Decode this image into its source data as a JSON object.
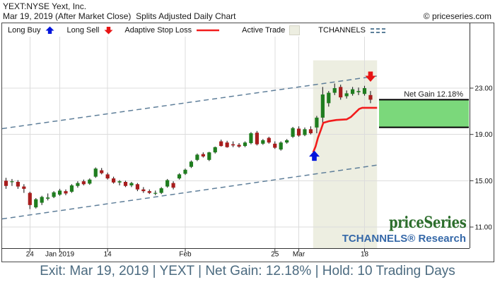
{
  "header": {
    "symbol_line": "YEXT:NYSE Yext, Inc.",
    "date_line": "Mar 19, 2019 (After Market Close)  Splits Adjusted Daily Chart",
    "copyright": "© priceseries.com"
  },
  "legend": {
    "items": [
      {
        "label": "Long Buy",
        "icon": "blue-up-arrow"
      },
      {
        "label": "Long Sell",
        "icon": "red-down-arrow"
      },
      {
        "label": "Adaptive Stop Loss",
        "icon": "red-line"
      },
      {
        "label": "Active Trade",
        "icon": "beige-swatch"
      },
      {
        "label": "TCHANNELS",
        "icon": "dashed-lines"
      }
    ]
  },
  "watermark": {
    "brand": "priceSeries",
    "research": "TCHANNELS® Research"
  },
  "status_bar": {
    "text": "Exit: Mar 19, 2019 | YEXT | Net Gain: 12.18% | Hold: 10 Trading Days"
  },
  "colors": {
    "candle_up": "#1f7d1f",
    "candle_down": "#a81d1d",
    "wick": "#222222",
    "stop_loss": "#f21c1c",
    "tchannel": "#5f7f9a",
    "trade_region_bg": "#edeee1",
    "net_gain_fill": "#7bd87b",
    "buy_marker": "#0014dc",
    "sell_marker": "#e81414",
    "grid": "#dcdcdc",
    "axis": "#333333",
    "watermark_green": "#2d6e2d",
    "research_blue": "#3568a8",
    "status_text": "#4c6b80"
  },
  "chart_data": {
    "type": "candlestick",
    "title": "YEXT:NYSE Yext, Inc.",
    "subtitle": "Splits Adjusted Daily Chart",
    "y_axis": {
      "ticks": [
        23,
        19,
        15,
        11
      ],
      "tick_labels": [
        "23.00",
        "19.00",
        "15.00",
        "11.00"
      ],
      "range": [
        9.2,
        27.4
      ],
      "grid": true
    },
    "x_axis": {
      "tick_labels": [
        "24",
        "Jan 2019",
        "14",
        "Feb",
        "25",
        "Mar",
        "18"
      ],
      "tick_indices": [
        4,
        9,
        17,
        30,
        45,
        49,
        60
      ],
      "grid": true
    },
    "candles": [
      {
        "date": "2018-12-18",
        "o": 15.0,
        "h": 15.25,
        "l": 14.3,
        "c": 14.55
      },
      {
        "date": "2018-12-19",
        "o": 14.9,
        "h": 15.15,
        "l": 14.55,
        "c": 14.95
      },
      {
        "date": "2018-12-20",
        "o": 14.9,
        "h": 15.05,
        "l": 14.3,
        "c": 14.5
      },
      {
        "date": "2018-12-21",
        "o": 14.5,
        "h": 14.7,
        "l": 13.95,
        "c": 14.3
      },
      {
        "date": "2018-12-24",
        "o": 13.95,
        "h": 14.05,
        "l": 12.55,
        "c": 12.9
      },
      {
        "date": "2018-12-26",
        "o": 12.7,
        "h": 13.5,
        "l": 12.6,
        "c": 13.4
      },
      {
        "date": "2018-12-27",
        "o": 13.1,
        "h": 13.7,
        "l": 12.9,
        "c": 13.6
      },
      {
        "date": "2018-12-28",
        "o": 13.45,
        "h": 13.9,
        "l": 13.3,
        "c": 13.55
      },
      {
        "date": "2018-12-31",
        "o": 13.6,
        "h": 14.1,
        "l": 13.5,
        "c": 14.0
      },
      {
        "date": "2019-01-02",
        "o": 13.8,
        "h": 14.3,
        "l": 13.7,
        "c": 14.15
      },
      {
        "date": "2019-01-03",
        "o": 14.1,
        "h": 14.25,
        "l": 13.75,
        "c": 13.9
      },
      {
        "date": "2019-01-04",
        "o": 14.05,
        "h": 14.7,
        "l": 13.95,
        "c": 14.6
      },
      {
        "date": "2019-01-07",
        "o": 14.55,
        "h": 14.95,
        "l": 14.4,
        "c": 14.8
      },
      {
        "date": "2019-01-08",
        "o": 14.95,
        "h": 15.1,
        "l": 14.6,
        "c": 14.7
      },
      {
        "date": "2019-01-09",
        "o": 14.75,
        "h": 15.2,
        "l": 14.65,
        "c": 15.1
      },
      {
        "date": "2019-01-10",
        "o": 15.35,
        "h": 16.15,
        "l": 15.25,
        "c": 16.05
      },
      {
        "date": "2019-01-11",
        "o": 15.9,
        "h": 16.1,
        "l": 15.55,
        "c": 15.65
      },
      {
        "date": "2019-01-14",
        "o": 15.55,
        "h": 15.7,
        "l": 15.1,
        "c": 15.2
      },
      {
        "date": "2019-01-15",
        "o": 15.2,
        "h": 15.35,
        "l": 14.75,
        "c": 14.85
      },
      {
        "date": "2019-01-16",
        "o": 14.85,
        "h": 15.05,
        "l": 14.6,
        "c": 14.95
      },
      {
        "date": "2019-01-17",
        "o": 14.9,
        "h": 15.0,
        "l": 14.45,
        "c": 14.55
      },
      {
        "date": "2019-01-18",
        "o": 14.6,
        "h": 14.9,
        "l": 14.45,
        "c": 14.8
      },
      {
        "date": "2019-01-22",
        "o": 14.7,
        "h": 14.8,
        "l": 14.1,
        "c": 14.25
      },
      {
        "date": "2019-01-23",
        "o": 14.25,
        "h": 14.45,
        "l": 13.95,
        "c": 14.1
      },
      {
        "date": "2019-01-24",
        "o": 14.1,
        "h": 14.25,
        "l": 13.85,
        "c": 13.95
      },
      {
        "date": "2019-01-25",
        "o": 13.9,
        "h": 14.15,
        "l": 13.75,
        "c": 13.95
      },
      {
        "date": "2019-01-28",
        "o": 13.95,
        "h": 14.45,
        "l": 13.85,
        "c": 14.35
      },
      {
        "date": "2019-01-29",
        "o": 14.5,
        "h": 15.15,
        "l": 14.4,
        "c": 15.05
      },
      {
        "date": "2019-01-30",
        "o": 14.8,
        "h": 14.95,
        "l": 14.25,
        "c": 14.4
      },
      {
        "date": "2019-01-31",
        "o": 15.2,
        "h": 15.65,
        "l": 15.1,
        "c": 15.55
      },
      {
        "date": "2019-02-01",
        "o": 15.6,
        "h": 16.05,
        "l": 15.5,
        "c": 15.95
      },
      {
        "date": "2019-02-04",
        "o": 16.2,
        "h": 16.75,
        "l": 16.1,
        "c": 16.65
      },
      {
        "date": "2019-02-05",
        "o": 16.8,
        "h": 17.35,
        "l": 16.7,
        "c": 17.25
      },
      {
        "date": "2019-02-06",
        "o": 17.3,
        "h": 17.45,
        "l": 17.0,
        "c": 17.1
      },
      {
        "date": "2019-02-07",
        "o": 16.8,
        "h": 17.5,
        "l": 16.7,
        "c": 17.45
      },
      {
        "date": "2019-02-08",
        "o": 17.45,
        "h": 17.95,
        "l": 17.35,
        "c": 17.9
      },
      {
        "date": "2019-02-11",
        "o": 18.4,
        "h": 18.55,
        "l": 17.95,
        "c": 18.0
      },
      {
        "date": "2019-02-12",
        "o": 18.3,
        "h": 18.45,
        "l": 17.85,
        "c": 17.9
      },
      {
        "date": "2019-02-13",
        "o": 18.15,
        "h": 18.4,
        "l": 17.9,
        "c": 18.05
      },
      {
        "date": "2019-02-14",
        "o": 18.1,
        "h": 18.25,
        "l": 17.85,
        "c": 17.95
      },
      {
        "date": "2019-02-15",
        "o": 18.0,
        "h": 18.4,
        "l": 17.9,
        "c": 18.3
      },
      {
        "date": "2019-02-19",
        "o": 18.25,
        "h": 19.2,
        "l": 18.15,
        "c": 19.1
      },
      {
        "date": "2019-02-20",
        "o": 19.15,
        "h": 19.3,
        "l": 18.05,
        "c": 18.15
      },
      {
        "date": "2019-02-21",
        "o": 18.2,
        "h": 18.6,
        "l": 18.1,
        "c": 18.5
      },
      {
        "date": "2019-02-22",
        "o": 18.7,
        "h": 18.8,
        "l": 18.2,
        "c": 18.3
      },
      {
        "date": "2019-02-25",
        "o": 18.2,
        "h": 18.4,
        "l": 17.75,
        "c": 17.85
      },
      {
        "date": "2019-02-26",
        "o": 17.7,
        "h": 18.4,
        "l": 17.6,
        "c": 18.3
      },
      {
        "date": "2019-02-27",
        "o": 18.3,
        "h": 18.6,
        "l": 18.2,
        "c": 18.5
      },
      {
        "date": "2019-02-28",
        "o": 18.8,
        "h": 19.65,
        "l": 18.7,
        "c": 19.55
      },
      {
        "date": "2019-03-01",
        "o": 19.5,
        "h": 19.7,
        "l": 18.8,
        "c": 18.9
      },
      {
        "date": "2019-03-04",
        "o": 18.95,
        "h": 19.6,
        "l": 18.85,
        "c": 19.45
      },
      {
        "date": "2019-03-05",
        "o": 19.45,
        "h": 19.7,
        "l": 19.0,
        "c": 19.1
      },
      {
        "date": "2019-03-06",
        "o": 19.6,
        "h": 20.6,
        "l": 19.1,
        "c": 20.45
      },
      {
        "date": "2019-03-07",
        "o": 20.45,
        "h": 23.1,
        "l": 19.9,
        "c": 22.45
      },
      {
        "date": "2019-03-08",
        "o": 21.7,
        "h": 22.75,
        "l": 21.4,
        "c": 22.6
      },
      {
        "date": "2019-03-11",
        "o": 22.6,
        "h": 23.4,
        "l": 22.4,
        "c": 23.0
      },
      {
        "date": "2019-03-12",
        "o": 23.1,
        "h": 23.3,
        "l": 22.0,
        "c": 22.2
      },
      {
        "date": "2019-03-13",
        "o": 22.3,
        "h": 22.8,
        "l": 22.1,
        "c": 22.55
      },
      {
        "date": "2019-03-14",
        "o": 22.5,
        "h": 23.1,
        "l": 22.35,
        "c": 22.9
      },
      {
        "date": "2019-03-15",
        "o": 22.65,
        "h": 23.05,
        "l": 22.4,
        "c": 22.75
      },
      {
        "date": "2019-03-18",
        "o": 22.5,
        "h": 23.2,
        "l": 22.35,
        "c": 23.0
      },
      {
        "date": "2019-03-19",
        "o": 22.4,
        "h": 22.75,
        "l": 21.7,
        "c": 22.0
      }
    ],
    "overlays": {
      "tchannel_upper": [
        [
          -0.65,
          19.5
        ],
        [
          62.1,
          24.05
        ]
      ],
      "tchannel_lower": [
        [
          -0.65,
          11.7
        ],
        [
          62.1,
          16.35
        ]
      ],
      "adaptive_stop_loss": [
        [
          51.4,
          17.45
        ],
        [
          51.8,
          17.95
        ],
        [
          52.2,
          18.7
        ],
        [
          52.7,
          19.4
        ],
        [
          53.1,
          20.0
        ],
        [
          54.1,
          20.15
        ],
        [
          55.3,
          20.25
        ],
        [
          57.0,
          20.3
        ],
        [
          57.7,
          20.5
        ],
        [
          58.4,
          20.85
        ],
        [
          59.1,
          21.2
        ],
        [
          59.6,
          21.3
        ],
        [
          62.1,
          21.3
        ]
      ],
      "active_trade_region": {
        "from_index": 51.4,
        "to_index": 62.1,
        "top_price": 25.4
      },
      "buy_marker": {
        "index": 51.6,
        "price": 17.6
      },
      "sell_marker": {
        "index": 61.0,
        "price": 23.55
      },
      "net_gain_box": {
        "label": "Net Gain 12.18%",
        "top_price": 22.0,
        "bottom_price": 19.61
      }
    }
  }
}
